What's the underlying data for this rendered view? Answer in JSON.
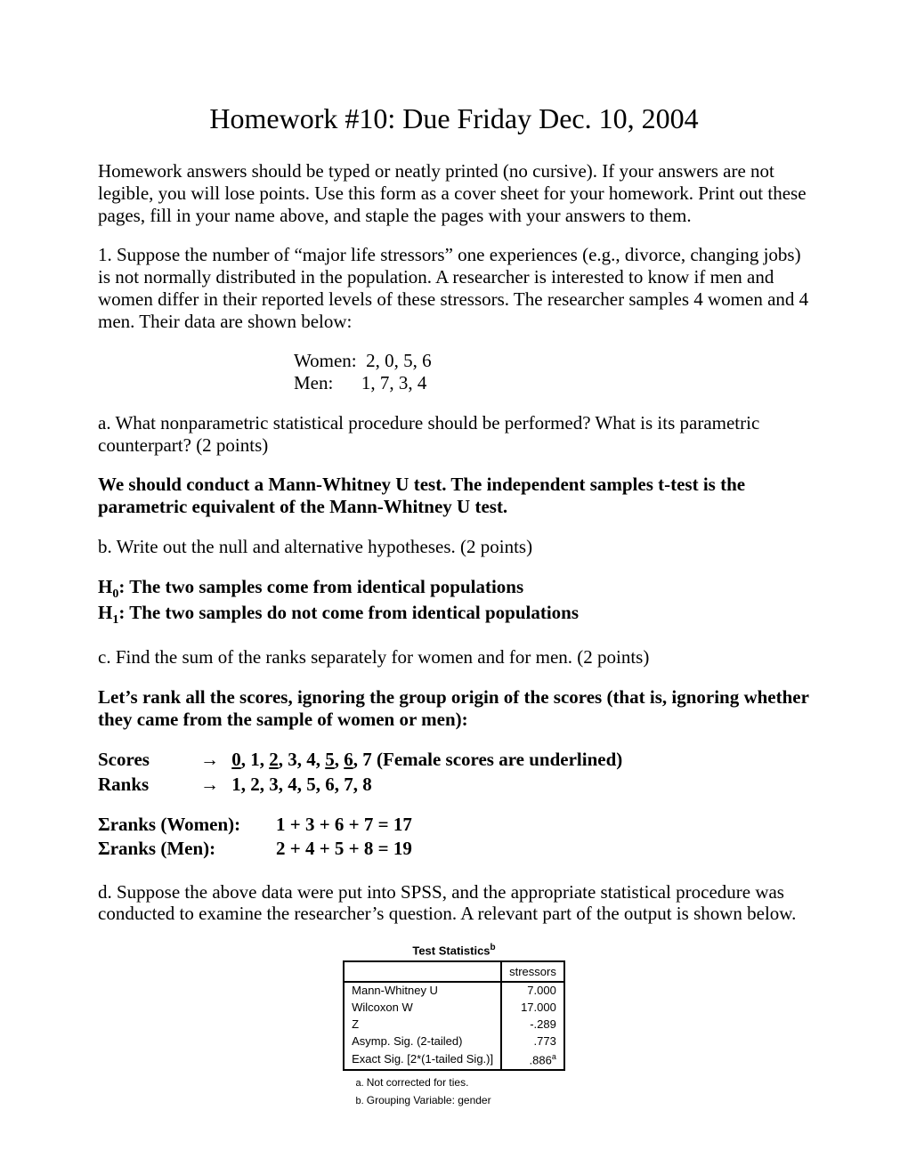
{
  "title": "Homework #10: Due Friday Dec. 10, 2004",
  "intro": "Homework answers should be typed or neatly printed (no cursive).  If your answers are not legible, you will lose points.  Use this form as a cover sheet for your homework.  Print out these pages, fill in your name above, and staple the pages with your answers to them.",
  "q1": "1.  Suppose the number of “major life stressors” one experiences (e.g., divorce, changing jobs) is not normally distributed in the population.  A researcher is interested to know if men and women differ in their reported levels of these stressors. The researcher samples 4 women and 4 men. Their data are shown below:",
  "data": {
    "women_label": "Women:  ",
    "women_vals": "2, 0, 5, 6",
    "men_label": "Men:      ",
    "men_vals": "1, 7, 3, 4"
  },
  "q1a": "a. What nonparametric statistical procedure should be performed?  What is its parametric counterpart? (2 points)",
  "ans1a": "We should conduct a Mann-Whitney U test.  The independent samples t-test is the parametric equivalent of the Mann-Whitney U test.",
  "q1b": "b. Write out the null and alternative hypotheses. (2 points)",
  "h0_pre": "H",
  "h0_sub": "0",
  "h0_txt": ": The two samples come from identical populations",
  "h1_pre": "H",
  "h1_sub": "1",
  "h1_txt": ": The two samples do not come from identical populations",
  "q1c": "c. Find the sum of the ranks separately for women and for men.  (2 points)",
  "ans1c_intro": "Let’s rank all the scores, ignoring the group origin of the scores (that is, ignoring whether they came from the sample of women or men):",
  "scores": {
    "scores_label": "Scores",
    "ranks_label": "Ranks",
    "arrow": "→",
    "items": [
      {
        "v": "0",
        "u": true
      },
      {
        "v": ", "
      },
      {
        "v": "1"
      },
      {
        "v": ", "
      },
      {
        "v": "2",
        "u": true
      },
      {
        "v": ", "
      },
      {
        "v": "3"
      },
      {
        "v": ", "
      },
      {
        "v": "4"
      },
      {
        "v": ", "
      },
      {
        "v": "5",
        "u": true
      },
      {
        "v": ", "
      },
      {
        "v": "6",
        "u": true
      },
      {
        "v": ", "
      },
      {
        "v": "7"
      }
    ],
    "note": "  (Female scores are underlined)",
    "ranks_line": "1, 2, 3, 4, 5, 6, 7, 8"
  },
  "sums": {
    "women_label": "Σranks (Women):",
    "women_expr": "1 + 3 + 6 + 7 = 17",
    "men_label": "Σranks (Men):",
    "men_expr": "2 + 4 + 5 + 8 = 19"
  },
  "q1d": "d. Suppose the above data were put into SPSS, and the appropriate statistical procedure was conducted to examine the researcher’s question.  A relevant part of the output is shown below.",
  "spss": {
    "title": "Test Statistics",
    "title_sup": "b",
    "col": "stressors",
    "rows": [
      {
        "label": "Mann-Whitney U",
        "val": "7.000",
        "sup": ""
      },
      {
        "label": "Wilcoxon W",
        "val": "17.000",
        "sup": ""
      },
      {
        "label": "Z",
        "val": "-.289",
        "sup": ""
      },
      {
        "label": "Asymp. Sig. (2-tailed)",
        "val": ".773",
        "sup": ""
      },
      {
        "label": "Exact Sig. [2*(1-tailed Sig.)]",
        "val": ".886",
        "sup": "a"
      }
    ],
    "notes": [
      {
        "k": "a.",
        "t": "Not corrected for ties."
      },
      {
        "k": "b.",
        "t": "Grouping Variable: gender"
      }
    ]
  }
}
